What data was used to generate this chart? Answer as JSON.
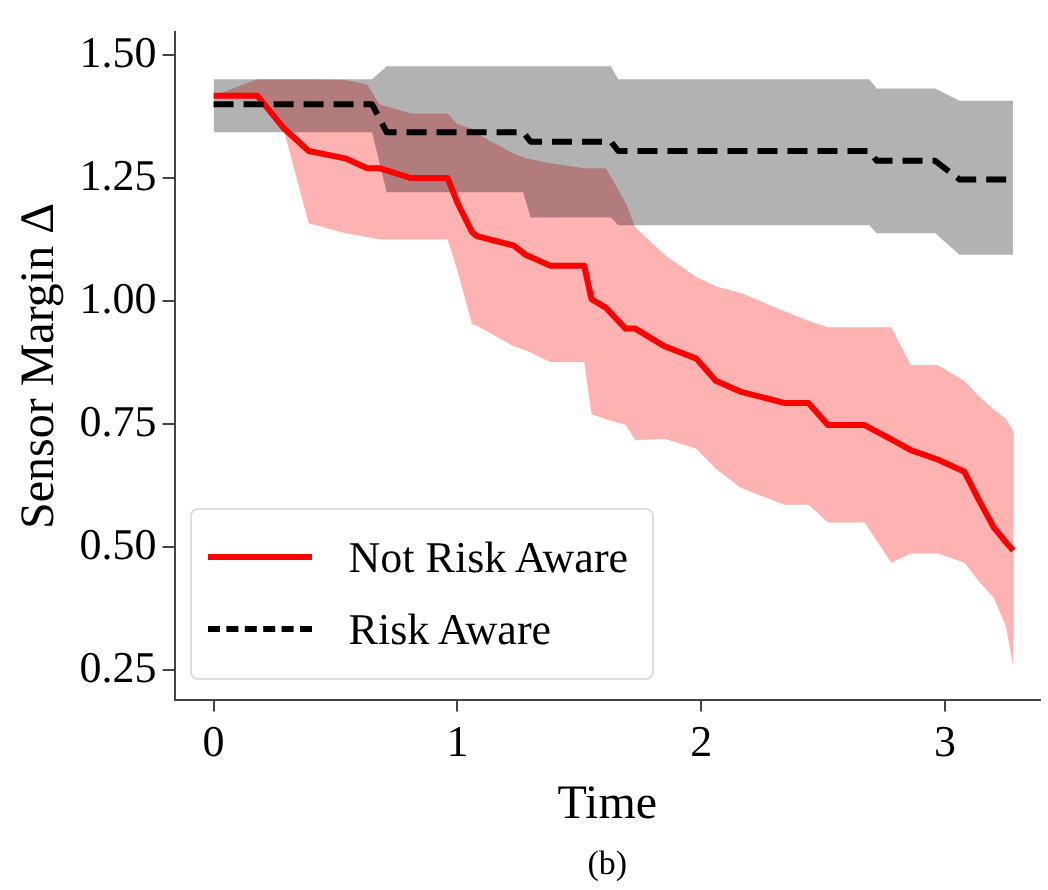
{
  "chart_data": {
    "type": "line",
    "xlabel": "Time",
    "ylabel": "Sensor Margin Δ",
    "annotations": [
      "(b)"
    ],
    "xlim": [
      -0.16,
      3.39
    ],
    "ylim": [
      0.19,
      1.546
    ],
    "xticks": [
      0,
      1,
      2,
      3
    ],
    "yticks": [
      {
        "value": 0.25,
        "label": "0.25"
      },
      {
        "value": 0.5,
        "label": "0.50"
      },
      {
        "value": 0.75,
        "label": "0.75"
      },
      {
        "value": 1.0,
        "label": "1.00"
      },
      {
        "value": 1.25,
        "label": "1.25"
      },
      {
        "value": 1.5,
        "label": "1.50"
      }
    ],
    "grid": false,
    "legend": "bottom left",
    "marker": "none",
    "series": [
      {
        "name": "Not Risk Aware",
        "color": "#ff0000",
        "line_style": "solid",
        "x": [
          0,
          0.18,
          0.29,
          0.39,
          0.54,
          0.63,
          0.68,
          0.81,
          0.96,
          1.0,
          1.06,
          1.08,
          1.23,
          1.28,
          1.38,
          1.52,
          1.55,
          1.61,
          1.69,
          1.73,
          1.85,
          1.98,
          2.06,
          2.16,
          2.34,
          2.44,
          2.52,
          2.67,
          2.78,
          2.86,
          2.97,
          3.08,
          3.14,
          3.2,
          3.25,
          3.28
        ],
        "values": [
          1.417,
          1.417,
          1.35,
          1.305,
          1.29,
          1.27,
          1.27,
          1.25,
          1.25,
          1.2,
          1.14,
          1.132,
          1.113,
          1.094,
          1.072,
          1.072,
          1.004,
          0.986,
          0.944,
          0.944,
          0.908,
          0.883,
          0.838,
          0.816,
          0.793,
          0.793,
          0.748,
          0.748,
          0.719,
          0.697,
          0.678,
          0.653,
          0.595,
          0.54,
          0.51,
          0.493
        ],
        "lower": [
          1.417,
          1.417,
          1.343,
          1.158,
          1.138,
          1.13,
          1.125,
          1.125,
          1.125,
          1.062,
          0.953,
          0.95,
          0.908,
          0.9,
          0.876,
          0.876,
          0.77,
          0.76,
          0.748,
          0.717,
          0.72,
          0.7,
          0.659,
          0.621,
          0.586,
          0.586,
          0.55,
          0.55,
          0.468,
          0.487,
          0.487,
          0.468,
          0.43,
          0.397,
          0.339,
          0.258
        ],
        "upper": [
          1.417,
          1.451,
          1.451,
          1.451,
          1.45,
          1.44,
          1.4,
          1.381,
          1.381,
          1.36,
          1.35,
          1.34,
          1.3,
          1.29,
          1.28,
          1.27,
          1.27,
          1.27,
          1.2,
          1.15,
          1.094,
          1.049,
          1.03,
          1.017,
          0.98,
          0.96,
          0.947,
          0.947,
          0.947,
          0.87,
          0.87,
          0.838,
          0.806,
          0.78,
          0.761,
          0.737
        ]
      },
      {
        "name": "Risk Aware",
        "color": "#000000",
        "line_style": "dashed",
        "x": [
          0,
          0.65,
          0.71,
          1.27,
          1.3,
          1.63,
          1.66,
          2.69,
          2.72,
          2.96,
          3.06,
          3.28
        ],
        "values": [
          1.4,
          1.4,
          1.343,
          1.343,
          1.324,
          1.324,
          1.305,
          1.305,
          1.285,
          1.285,
          1.247,
          1.247
        ],
        "lower": [
          1.343,
          1.343,
          1.221,
          1.221,
          1.17,
          1.17,
          1.154,
          1.154,
          1.138,
          1.138,
          1.094,
          1.094
        ],
        "upper": [
          1.451,
          1.451,
          1.477,
          1.477,
          1.477,
          1.477,
          1.451,
          1.451,
          1.432,
          1.432,
          1.407,
          1.407
        ]
      }
    ]
  }
}
